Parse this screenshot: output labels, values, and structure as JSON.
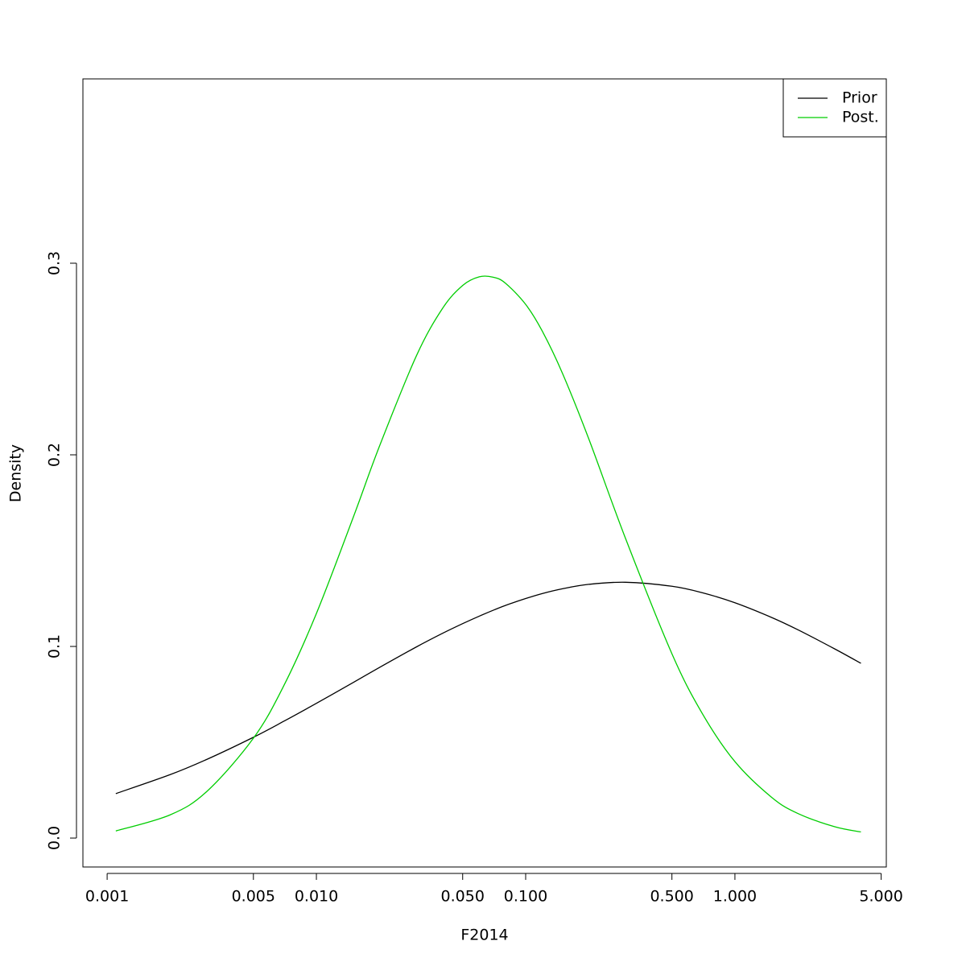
{
  "chart_data": {
    "type": "line",
    "x_label": "F2014",
    "y_label": "Density",
    "x": [
      0.0011,
      0.002,
      0.003,
      0.005,
      0.007,
      0.01,
      0.015,
      0.02,
      0.03,
      0.04,
      0.05,
      0.06,
      0.07,
      0.08,
      0.1,
      0.12,
      0.15,
      0.2,
      0.3,
      0.5,
      0.7,
      1,
      1.5,
      2,
      3,
      4
    ],
    "series": [
      {
        "name": "Prior",
        "color": "#000000",
        "values": [
          0.0232,
          0.0331,
          0.0411,
          0.0526,
          0.061,
          0.0703,
          0.0812,
          0.089,
          0.0997,
          0.1068,
          0.1119,
          0.1158,
          0.1189,
          0.1214,
          0.125,
          0.1276,
          0.1301,
          0.1324,
          0.1335,
          0.1314,
          0.128,
          0.1228,
          0.1151,
          0.1087,
          0.0987,
          0.0912
        ]
      },
      {
        "name": "Post.",
        "color": "#00cd00",
        "values": [
          0.0037,
          0.0121,
          0.0244,
          0.0521,
          0.0797,
          0.1172,
          0.1674,
          0.2044,
          0.2515,
          0.2763,
          0.2884,
          0.2929,
          0.2927,
          0.2896,
          0.2785,
          0.2646,
          0.2425,
          0.2085,
          0.1564,
          0.0962,
          0.0648,
          0.0399,
          0.0212,
          0.0128,
          0.0059,
          0.0032
        ]
      }
    ],
    "x_log": true,
    "xlim": [
      0.000766,
      5.29
    ],
    "xticks": [
      0.001,
      0.005,
      {
        "value": 0.01,
        "label": "0.010"
      },
      {
        "value": 0.05,
        "label": "0.050"
      },
      {
        "value": 0.1,
        "label": "0.100"
      },
      {
        "value": 0.5,
        "label": "0.500"
      },
      {
        "value": 1,
        "label": "1.000"
      },
      {
        "value": 5,
        "label": "5.000"
      }
    ],
    "ylim": [
      -0.0151,
      0.3962
    ],
    "yticks": [
      {
        "value": 0,
        "label": "0.0"
      },
      0.1,
      0.2,
      0.3
    ],
    "grid": false,
    "legend_position": "top-right"
  }
}
